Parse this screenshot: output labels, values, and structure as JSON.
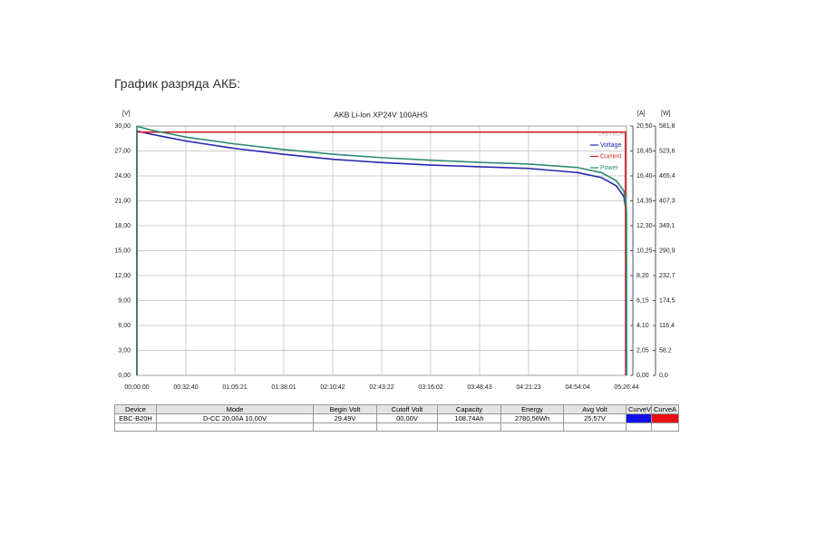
{
  "heading": "График разряда АКБ:",
  "chart_data": {
    "type": "line",
    "title": "AKB Li-Ion XP24V 100AHS",
    "watermark": "ZKETECH",
    "ylabel": "[V]",
    "y2label": "[A]",
    "y3label": "[W]",
    "xlim": [
      0,
      19604
    ],
    "xticks": [
      {
        "value": 0,
        "label": "00:00:00"
      },
      {
        "value": 1960,
        "label": "00:32:40"
      },
      {
        "value": 3921,
        "label": "01:05:21"
      },
      {
        "value": 5881,
        "label": "01:38:01"
      },
      {
        "value": 7842,
        "label": "02:10:42"
      },
      {
        "value": 9802,
        "label": "02:43:22"
      },
      {
        "value": 11762,
        "label": "03:16:02"
      },
      {
        "value": 13723,
        "label": "03:48:43"
      },
      {
        "value": 15683,
        "label": "04:21:23"
      },
      {
        "value": 17644,
        "label": "04:54:04"
      },
      {
        "value": 19604,
        "label": "05:26:44"
      }
    ],
    "ylim": [
      0,
      30
    ],
    "yticks": [
      {
        "value": 0,
        "label": "0,00"
      },
      {
        "value": 3,
        "label": "3,00"
      },
      {
        "value": 6,
        "label": "6,00"
      },
      {
        "value": 9,
        "label": "9,00"
      },
      {
        "value": 12,
        "label": "12,00"
      },
      {
        "value": 15,
        "label": "15,00"
      },
      {
        "value": 18,
        "label": "18,00"
      },
      {
        "value": 21,
        "label": "21,00"
      },
      {
        "value": 24,
        "label": "24,00"
      },
      {
        "value": 27,
        "label": "27,00"
      },
      {
        "value": 30,
        "label": "30,00"
      }
    ],
    "y2lim": [
      0,
      20.5
    ],
    "y2ticks": [
      {
        "value": 0,
        "label": "0,00"
      },
      {
        "value": 2.05,
        "label": "2,05"
      },
      {
        "value": 4.1,
        "label": "4,10"
      },
      {
        "value": 6.15,
        "label": "6,15"
      },
      {
        "value": 8.2,
        "label": "8,20"
      },
      {
        "value": 10.25,
        "label": "10,25"
      },
      {
        "value": 12.3,
        "label": "12,30"
      },
      {
        "value": 14.35,
        "label": "14,35"
      },
      {
        "value": 16.4,
        "label": "16,40"
      },
      {
        "value": 18.45,
        "label": "18,45"
      },
      {
        "value": 20.5,
        "label": "20,50"
      }
    ],
    "y3lim": [
      0,
      581.8
    ],
    "y3ticks": [
      {
        "value": 0,
        "label": "0,0"
      },
      {
        "value": 58.18,
        "label": "58,2"
      },
      {
        "value": 116.36,
        "label": "116,4"
      },
      {
        "value": 174.54,
        "label": "174,5"
      },
      {
        "value": 232.72,
        "label": "232,7"
      },
      {
        "value": 290.9,
        "label": "290,9"
      },
      {
        "value": 349.08,
        "label": "349,1"
      },
      {
        "value": 407.26,
        "label": "407,3"
      },
      {
        "value": 465.44,
        "label": "465,4"
      },
      {
        "value": 523.62,
        "label": "523,6"
      },
      {
        "value": 581.8,
        "label": "581,8"
      }
    ],
    "grid": true,
    "legend": "top-right",
    "series": [
      {
        "name": "Voltage",
        "color": "#2626b0",
        "axis": "y",
        "x": [
          0,
          0,
          600,
          1960,
          3921,
          5881,
          7842,
          9802,
          11762,
          13723,
          15683,
          17644,
          18600,
          19200,
          19500,
          19600,
          19604
        ],
        "values": [
          0,
          29.4,
          29.0,
          28.2,
          27.3,
          26.6,
          26.0,
          25.6,
          25.3,
          25.1,
          24.9,
          24.4,
          23.8,
          22.8,
          21.5,
          19.5,
          0
        ]
      },
      {
        "name": "Current",
        "color": "#d42020",
        "axis": "y2",
        "x": [
          0,
          0,
          19560,
          19570
        ],
        "values": [
          0,
          20.0,
          20.0,
          0
        ]
      },
      {
        "name": "Power",
        "color": "#2e8b74",
        "axis": "y3",
        "x": [
          0,
          0,
          600,
          1960,
          3921,
          5881,
          7842,
          9802,
          11762,
          13723,
          15683,
          17644,
          18600,
          19200,
          19500,
          19600,
          19604
        ],
        "values": [
          0,
          581,
          572,
          556,
          540,
          527,
          516,
          508,
          502,
          497,
          493,
          485,
          473,
          454,
          430,
          392,
          0
        ]
      }
    ]
  },
  "table": {
    "header": [
      "Device",
      "Mode",
      "Begin Volt",
      "Cutoff Volt",
      "Capacity",
      "Energy",
      "Avg Volt",
      "CurveV",
      "CurveA"
    ],
    "rows": [
      [
        "EBC-B20H",
        "D-CC  20,00A  10,00V",
        "29,49V",
        "00,00V",
        "108,74Ah",
        "2780,56Wh",
        "25,57V"
      ]
    ],
    "swatch_colors": [
      "#1010e8",
      "#e81010"
    ]
  }
}
